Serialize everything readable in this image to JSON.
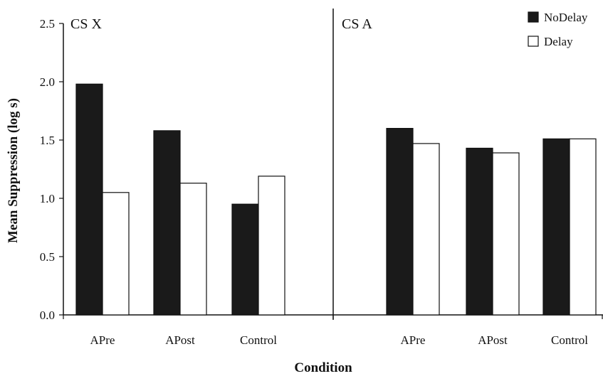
{
  "chart_data": {
    "type": "bar",
    "ylabel": "Mean Suppression (log s)",
    "xlabel": "Condition",
    "ylim": [
      0,
      2.5
    ],
    "yticks": [
      "0.0",
      "0.5",
      "1.0",
      "1.5",
      "2.0",
      "2.5"
    ],
    "ytick_values": [
      0,
      0.5,
      1.0,
      1.5,
      2.0,
      2.5
    ],
    "legend_position": "top-right",
    "series": [
      {
        "name": "NoDelay",
        "color": "#1a1a1a"
      },
      {
        "name": "Delay",
        "color": "#ffffff"
      }
    ],
    "panels": [
      {
        "label": "CS X",
        "categories": [
          "APre",
          "APost",
          "Control"
        ],
        "values": {
          "NoDelay": [
            1.98,
            1.58,
            0.95
          ],
          "Delay": [
            1.05,
            1.13,
            1.19
          ]
        }
      },
      {
        "label": "CS A",
        "categories": [
          "APre",
          "APost",
          "Control"
        ],
        "values": {
          "NoDelay": [
            1.6,
            1.43,
            1.51
          ],
          "Delay": [
            1.47,
            1.39,
            1.51
          ]
        }
      }
    ]
  }
}
